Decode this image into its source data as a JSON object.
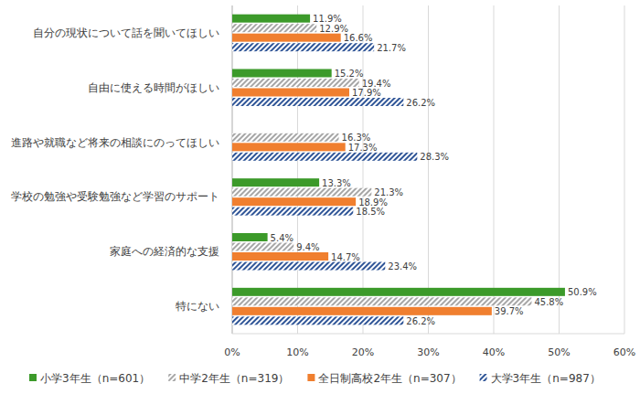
{
  "chart_data": {
    "type": "bar",
    "orientation": "horizontal",
    "grid": true,
    "data_labels": true,
    "legend": "bottom",
    "categories": [
      "自分の現状について話を聞いてほしい",
      "自由に使える時間がほしい",
      "進路や就職など将来の相談にのってほしい",
      "学校の勉強や受験勉強など学習のサポート",
      "家庭への経済的な支援",
      "特にない"
    ],
    "xlim": [
      0,
      60
    ],
    "xticks": [
      {
        "value": 0,
        "label": "0%"
      },
      {
        "value": 10,
        "label": "10%"
      },
      {
        "value": 20,
        "label": "20%"
      },
      {
        "value": 30,
        "label": "30%"
      },
      {
        "value": 40,
        "label": "40%"
      },
      {
        "value": 50,
        "label": "50%"
      },
      {
        "value": 60,
        "label": "60%"
      }
    ],
    "series": [
      {
        "name": "小学3年生（n=601）",
        "color": "#3c9a2a",
        "values": [
          11.9,
          15.2,
          null,
          13.3,
          5.4,
          50.9
        ],
        "value_labels": [
          "11.9%",
          "15.2%",
          null,
          "13.3%",
          "5.4%",
          "50.9%"
        ]
      },
      {
        "name": "中学2年生（n=319）",
        "color": "#a6a6a6",
        "values": [
          12.9,
          19.4,
          16.3,
          21.3,
          9.4,
          45.8
        ],
        "value_labels": [
          "12.9%",
          "19.4%",
          "16.3%",
          "21.3%",
          "9.4%",
          "45.8%"
        ]
      },
      {
        "name": "全日制高校2年生（n=307）",
        "color": "#f07f2f",
        "values": [
          16.6,
          17.9,
          17.3,
          18.9,
          14.7,
          39.7
        ],
        "value_labels": [
          "16.6%",
          "17.9%",
          "17.3%",
          "18.9%",
          "14.7%",
          "39.7%"
        ]
      },
      {
        "name": "大学3年生（n=987）",
        "color": "#2f5597",
        "values": [
          21.7,
          26.2,
          28.3,
          18.5,
          23.4,
          26.2
        ],
        "value_labels": [
          "21.7%",
          "26.2%",
          "28.3%",
          "18.5%",
          "23.4%",
          "26.2%"
        ]
      }
    ]
  }
}
